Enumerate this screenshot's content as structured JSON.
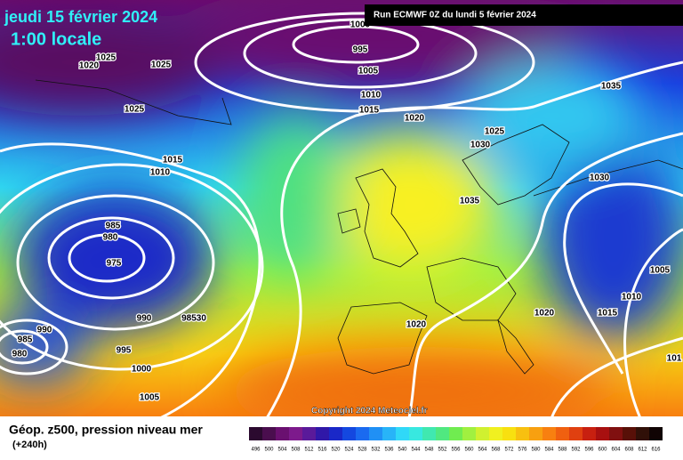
{
  "header": {
    "date": "jeudi 15 février 2024",
    "time": "1:00 locale",
    "run": "Run ECMWF 0Z du lundi 5 février 2024"
  },
  "footer": {
    "title": "Géop. z500, pression niveau mer",
    "lead": "(+240h)",
    "copyright": "Copyright 2024 Meteociel.fr"
  },
  "isobar_labels": [
    "1000",
    "995",
    "1005",
    "1010",
    "1015",
    "1020",
    "1025",
    "1030",
    "1035",
    "1030",
    "1035",
    "1005",
    "1010",
    "1015",
    "1020",
    "1020",
    "1020",
    "1025",
    "1025",
    "1025",
    "1015",
    "1010",
    "985",
    "980",
    "975",
    "990",
    "98530",
    "990",
    "985",
    "980",
    "995",
    "1000",
    "1005",
    "101"
  ],
  "scale": {
    "labels": [
      "496",
      "500",
      "504",
      "508",
      "512",
      "516",
      "520",
      "524",
      "528",
      "532",
      "536",
      "540",
      "544",
      "548",
      "552",
      "556",
      "560",
      "564",
      "568",
      "572",
      "576",
      "580",
      "584",
      "588",
      "592",
      "596",
      "600",
      "604",
      "608",
      "612",
      "616"
    ],
    "colors": [
      "#2b0a2f",
      "#4a0e4e",
      "#6a1070",
      "#7d1a8c",
      "#5a1a9a",
      "#3018a8",
      "#1a28c8",
      "#1448e0",
      "#1a6af0",
      "#2090f5",
      "#28b4f8",
      "#30d8f8",
      "#38e8e0",
      "#40e8b0",
      "#50e880",
      "#70ec50",
      "#a0f040",
      "#d0f030",
      "#f0f020",
      "#f8e010",
      "#f8c010",
      "#f8a010",
      "#f88010",
      "#f06010",
      "#e04010",
      "#c82010",
      "#a81010",
      "#801010",
      "#581008",
      "#301008",
      "#100404"
    ]
  }
}
